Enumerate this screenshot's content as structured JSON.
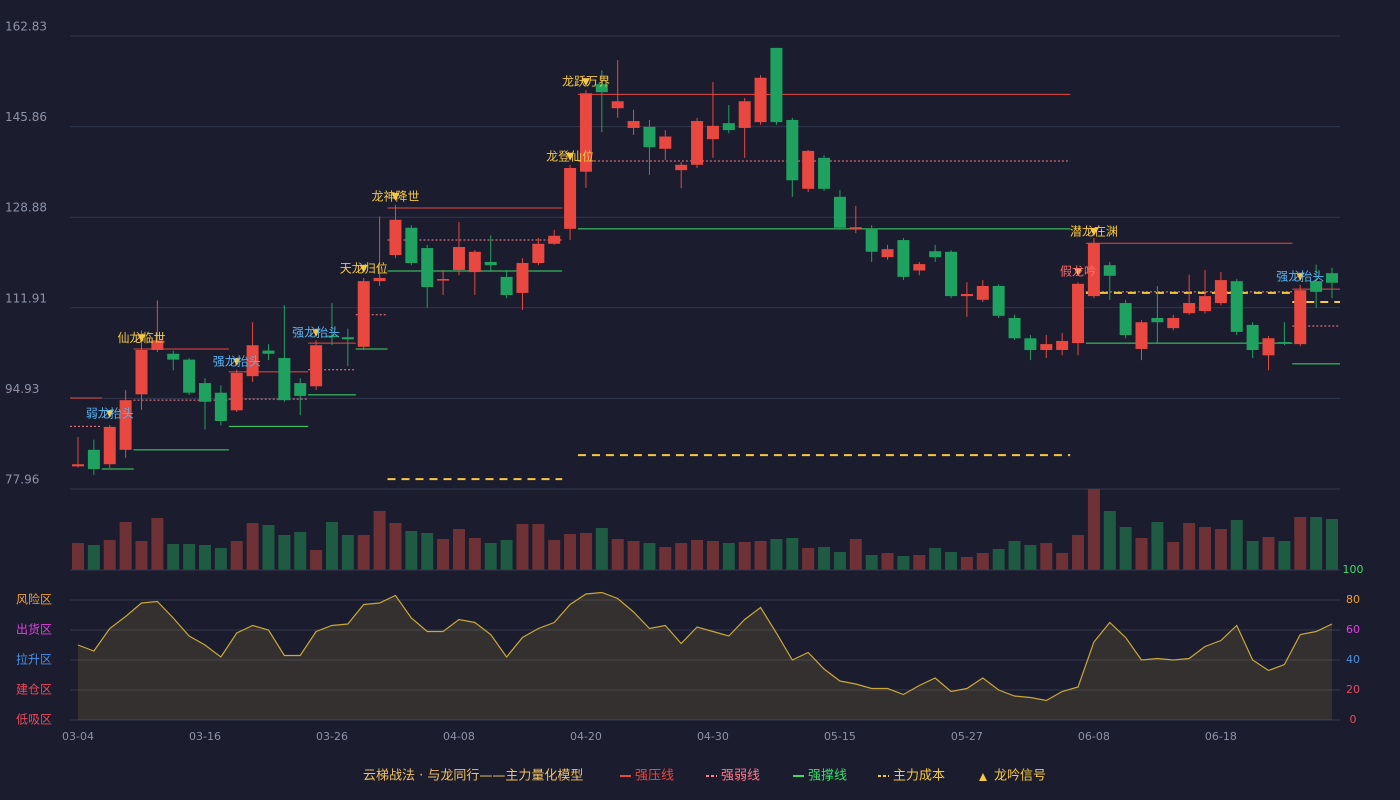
{
  "chart_data": [
    {
      "type": "candlestick",
      "title": "云梯战法 · 与龙同行——主力量化模型",
      "categories": [
        "03-04",
        null,
        null,
        null,
        null,
        null,
        null,
        null,
        "03-16",
        null,
        null,
        null,
        null,
        null,
        null,
        null,
        "03-26",
        null,
        null,
        null,
        null,
        null,
        null,
        null,
        "04-08",
        null,
        null,
        null,
        null,
        null,
        null,
        null,
        "04-20",
        null,
        null,
        null,
        null,
        null,
        null,
        null,
        "04-30",
        null,
        null,
        null,
        null,
        null,
        null,
        null,
        "05-15",
        null,
        null,
        null,
        null,
        null,
        null,
        null,
        "05-27",
        null,
        null,
        null,
        null,
        null,
        null,
        null,
        "06-08",
        null,
        null,
        null,
        null,
        null,
        null,
        null,
        "06-18",
        null,
        null,
        null,
        null,
        null,
        null,
        null
      ],
      "open": [
        82.2,
        85.3,
        82.6,
        85.3,
        95.7,
        104.0,
        103.3,
        102.2,
        97.8,
        96.0,
        92.7,
        99.1,
        103.9,
        102.5,
        97.8,
        97.2,
        106.7,
        106.4,
        104.6,
        116.9,
        121.8,
        126.9,
        123.1,
        117.0,
        119.0,
        118.6,
        120.5,
        117.7,
        114.7,
        120.3,
        123.9,
        126.7,
        137.4,
        153.8,
        149.3,
        145.6,
        145.8,
        141.7,
        137.7,
        138.7,
        143.5,
        146.5,
        145.6,
        146.7,
        160.6,
        147.1,
        134.2,
        140.0,
        132.7,
        126.7,
        126.7,
        121.4,
        124.6,
        118.9,
        122.5,
        122.4,
        114.1,
        113.4,
        116.0,
        110.0,
        106.2,
        104.0,
        104.0,
        105.3,
        114.1,
        119.9,
        112.8,
        104.2,
        110.0,
        108.1,
        110.9,
        111.3,
        112.8,
        116.9,
        108.7,
        103.0,
        105.5,
        105.1,
        116.9,
        118.4
      ],
      "close": [
        82.6,
        81.7,
        89.6,
        94.6,
        104.0,
        105.8,
        102.2,
        96.0,
        94.3,
        90.7,
        99.7,
        104.9,
        103.3,
        94.6,
        95.4,
        104.9,
        106.4,
        106.0,
        116.9,
        117.5,
        128.4,
        120.3,
        115.8,
        117.3,
        123.3,
        122.4,
        119.9,
        114.3,
        120.3,
        123.9,
        125.4,
        138.1,
        152.1,
        152.3,
        150.6,
        146.9,
        142.0,
        144.0,
        138.7,
        146.9,
        146.0,
        145.2,
        150.6,
        155.0,
        146.7,
        135.8,
        141.3,
        134.2,
        126.9,
        127.0,
        122.4,
        122.9,
        117.7,
        120.1,
        121.4,
        114.1,
        114.5,
        116.0,
        110.4,
        106.2,
        104.0,
        105.1,
        105.7,
        116.4,
        124.0,
        117.9,
        106.8,
        109.2,
        109.2,
        110.0,
        112.8,
        114.1,
        117.1,
        107.4,
        104.0,
        106.2,
        105.3,
        115.2,
        114.9,
        116.6
      ],
      "high": [
        87.7,
        87.2,
        89.9,
        96.5,
        107.7,
        113.3,
        103.9,
        102.5,
        98.7,
        97.4,
        100.3,
        109.2,
        105.1,
        112.4,
        98.7,
        105.8,
        112.8,
        108.0,
        117.5,
        129.0,
        131.2,
        127.4,
        123.7,
        119.0,
        128.0,
        122.7,
        125.5,
        119.0,
        121.2,
        125.0,
        126.5,
        138.7,
        152.7,
        156.4,
        158.3,
        149.0,
        147.1,
        145.2,
        139.2,
        147.5,
        154.2,
        149.9,
        151.2,
        155.5,
        160.6,
        147.5,
        141.5,
        140.5,
        134.0,
        131.0,
        127.4,
        123.7,
        125.0,
        120.5,
        123.7,
        122.7,
        116.7,
        117.1,
        116.3,
        110.6,
        106.8,
        106.8,
        107.2,
        116.7,
        125.0,
        120.5,
        113.4,
        109.6,
        116.0,
        110.6,
        118.1,
        119.0,
        118.6,
        117.3,
        109.2,
        106.6,
        109.2,
        116.2,
        120.0,
        119.4
      ],
      "low": [
        82.0,
        80.6,
        81.9,
        83.8,
        92.8,
        103.6,
        100.2,
        95.6,
        89.1,
        89.9,
        92.4,
        98.0,
        102.1,
        94.3,
        91.8,
        96.5,
        104.9,
        101.0,
        104.0,
        116.0,
        121.2,
        119.9,
        111.9,
        114.3,
        118.0,
        114.3,
        118.6,
        113.7,
        111.5,
        119.9,
        123.7,
        124.6,
        134.4,
        144.8,
        147.5,
        144.3,
        136.8,
        139.6,
        134.3,
        138.1,
        140.0,
        144.6,
        140.0,
        146.2,
        146.2,
        132.7,
        133.6,
        133.8,
        126.5,
        125.9,
        120.5,
        120.9,
        117.1,
        118.0,
        120.5,
        113.7,
        110.2,
        113.0,
        110.0,
        105.9,
        102.1,
        102.5,
        103.0,
        103.0,
        113.7,
        113.4,
        106.2,
        102.1,
        105.1,
        107.7,
        110.6,
        110.8,
        112.4,
        106.8,
        102.5,
        100.2,
        104.9,
        104.7,
        111.9,
        113.7
      ],
      "up_color": "#e8483f",
      "down_color": "#1fa25f",
      "ylim": [
        77.96,
        162.83
      ],
      "yticks": [
        77.96,
        94.93,
        111.91,
        128.88,
        145.86,
        162.83
      ],
      "grid": true,
      "levels": [
        {
          "name": "强压线",
          "color": "#e8483f",
          "style": "solid",
          "segments": [
            {
              "value": 95.0,
              "start": 0,
              "end": 1
            },
            {
              "value": 104.2,
              "start": 4,
              "end": 9
            },
            {
              "value": 99.9,
              "start": 10,
              "end": 14
            },
            {
              "value": 105.3,
              "start": 15,
              "end": 17
            },
            {
              "value": 130.6,
              "start": 20,
              "end": 30
            },
            {
              "value": 151.9,
              "start": 32,
              "end": 62
            },
            {
              "value": 124.0,
              "start": 64,
              "end": 76
            },
            {
              "value": 115.4,
              "start": 77,
              "end": 79
            }
          ]
        },
        {
          "name": "强弱线",
          "color": "#ff7a8a",
          "style": "dotted",
          "segments": [
            {
              "value": 89.7,
              "start": 0,
              "end": 1
            },
            {
              "value": 94.6,
              "start": 4,
              "end": 9
            },
            {
              "value": 94.8,
              "start": 10,
              "end": 14
            },
            {
              "value": 100.3,
              "start": 15,
              "end": 17
            },
            {
              "value": 110.6,
              "start": 18,
              "end": 19
            },
            {
              "value": 124.6,
              "start": 20,
              "end": 30
            },
            {
              "value": 139.4,
              "start": 32,
              "end": 62
            },
            {
              "value": 114.9,
              "start": 64,
              "end": 76
            },
            {
              "value": 108.5,
              "start": 77,
              "end": 79
            }
          ]
        },
        {
          "name": "强撑线",
          "color": "#3ddc6a",
          "style": "solid",
          "segments": [
            {
              "value": 81.7,
              "start": 2,
              "end": 3
            },
            {
              "value": 85.3,
              "start": 4,
              "end": 9
            },
            {
              "value": 89.7,
              "start": 10,
              "end": 14
            },
            {
              "value": 95.6,
              "start": 15,
              "end": 17
            },
            {
              "value": 104.2,
              "start": 18,
              "end": 19
            },
            {
              "value": 118.8,
              "start": 20,
              "end": 30
            },
            {
              "value": 126.7,
              "start": 32,
              "end": 62
            },
            {
              "value": 105.3,
              "start": 64,
              "end": 76
            },
            {
              "value": 101.4,
              "start": 77,
              "end": 79
            }
          ]
        },
        {
          "name": "主力成本",
          "color": "#f5c842",
          "style": "dashed",
          "segments": [
            {
              "value": 79.8,
              "start": 20,
              "end": 30
            },
            {
              "value": 84.3,
              "start": 32,
              "end": 62
            },
            {
              "value": 114.7,
              "start": 64,
              "end": 76
            },
            {
              "value": 113.0,
              "start": 77,
              "end": 79
            }
          ]
        }
      ],
      "signal_marker": {
        "name": "龙吟信号",
        "color": "#f5c842"
      },
      "signals": [
        {
          "label": "弱龙抬头",
          "index": 2,
          "value": 92.0,
          "color": "#5ab4f0"
        },
        {
          "label": "仙龙临世",
          "index": 4,
          "value": 106.2,
          "color": "#f5c842"
        },
        {
          "label": "强龙抬头",
          "index": 10,
          "value": 101.75,
          "color": "#5ab4f0"
        },
        {
          "label": "强龙抬头",
          "index": 15,
          "value": 107.2,
          "color": "#5ab4f0"
        },
        {
          "label": "天龙归位",
          "index": 18,
          "value": 119.2,
          "color": "#f5c842"
        },
        {
          "label": "龙神降世",
          "index": 20,
          "value": 132.7,
          "color": "#f5c842"
        },
        {
          "label": "龙登仙位",
          "index": 31,
          "value": 140.2,
          "color": "#f5c842"
        },
        {
          "label": "龙跃万界",
          "index": 32,
          "value": 154.2,
          "color": "#f5c842"
        },
        {
          "label": "假龙吟",
          "index": 63,
          "value": 118.6,
          "color": "#ff6b6b"
        },
        {
          "label": "潜龙在渊",
          "index": 64,
          "value": 126.1,
          "color": "#f5c842"
        },
        {
          "label": "强龙抬头",
          "index": 77,
          "value": 117.7,
          "color": "#5ab4f0"
        }
      ]
    },
    {
      "type": "volume",
      "values": [
        27,
        25,
        30,
        48,
        29,
        52,
        26,
        26,
        25,
        22,
        29,
        47,
        45,
        35,
        38,
        20,
        48,
        35,
        35,
        59,
        47,
        39,
        37,
        31,
        41,
        32,
        27,
        30,
        46,
        46,
        30,
        36,
        37,
        42,
        31,
        29,
        27,
        23,
        27,
        30,
        29,
        27,
        28,
        29,
        31,
        32,
        22,
        23,
        18,
        31,
        15,
        17,
        14,
        15,
        22,
        18,
        13,
        17,
        21,
        29,
        25,
        27,
        17,
        35,
        81,
        59,
        43,
        32,
        48,
        28,
        47,
        43,
        41,
        50,
        29,
        33,
        29,
        53,
        53,
        51
      ],
      "up_color": "#6e3236",
      "down_color": "#1f5a42"
    },
    {
      "type": "area",
      "values": [
        50,
        46,
        61,
        69,
        78,
        79,
        68,
        56,
        50,
        42,
        58,
        63,
        60,
        43,
        43,
        59,
        63,
        64,
        77,
        78,
        83,
        68,
        59,
        59,
        67,
        65,
        57,
        42,
        55,
        61,
        65,
        77,
        84,
        85,
        81,
        72,
        61,
        63,
        51,
        62,
        59,
        56,
        67,
        75,
        58,
        40,
        45,
        34,
        26,
        24,
        21,
        21,
        17,
        23,
        28,
        19,
        21,
        28,
        20,
        16,
        15,
        13,
        19,
        22,
        52,
        65,
        55,
        40,
        41,
        40,
        41,
        49,
        53,
        63,
        40,
        33,
        37,
        57,
        59,
        64
      ],
      "color": "#c8a838",
      "ylim": [
        0,
        100
      ],
      "yticks": [
        0,
        20,
        40,
        60,
        80,
        100
      ],
      "tick_colors": [
        "#e84a5f",
        "#e84a5f",
        "#4a90e2",
        "#e040e0",
        "#f0a030",
        "#3ddc6a"
      ],
      "zones": [
        {
          "label": "风险区",
          "value": 80,
          "color": "#f0a030"
        },
        {
          "label": "出货区",
          "value": 60,
          "color": "#e040e0"
        },
        {
          "label": "拉升区",
          "value": 40,
          "color": "#4a90e2"
        },
        {
          "label": "建仓区",
          "value": 20,
          "color": "#e84a5f"
        },
        {
          "label": "低吸区",
          "value": 0,
          "color": "#e84a5f"
        }
      ]
    }
  ]
}
